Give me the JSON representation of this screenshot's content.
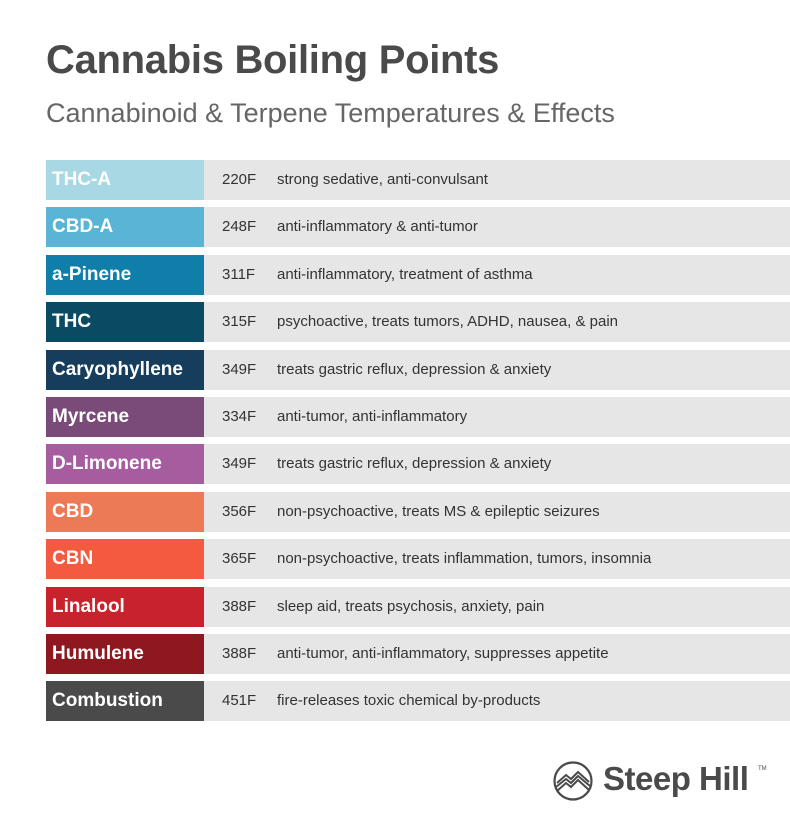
{
  "header": {
    "title": "Cannabis Boiling Points",
    "subtitle": "Cannabinoid & Terpene Temperatures & Effects"
  },
  "rows": [
    {
      "name": "THC-A",
      "temp": "220F",
      "effect": "strong sedative, anti-convulsant",
      "color": "#a8d8e4"
    },
    {
      "name": "CBD-A",
      "temp": "248F",
      "effect": "anti-inflammatory & anti-tumor",
      "color": "#5ab4d6"
    },
    {
      "name": "a-Pinene",
      "temp": "311F",
      "effect": "anti-inflammatory, treatment of asthma",
      "color": "#0f7ea8"
    },
    {
      "name": "THC",
      "temp": "315F",
      "effect": "psychoactive, treats tumors, ADHD, nausea, & pain",
      "color": "#0b4a63"
    },
    {
      "name": "Caryophyllene",
      "temp": "349F",
      "effect": "treats gastric reflux, depression & anxiety",
      "color": "#163d5c"
    },
    {
      "name": "Myrcene",
      "temp": "334F",
      "effect": "anti-tumor, anti-inflammatory",
      "color": "#7a4a78"
    },
    {
      "name": "D-Limonene",
      "temp": "349F",
      "effect": "treats gastric reflux, depression & anxiety",
      "color": "#a65da0"
    },
    {
      "name": "CBD",
      "temp": "356F",
      "effect": "non-psychoactive, treats MS & epileptic seizures",
      "color": "#ec7a57"
    },
    {
      "name": "CBN",
      "temp": "365F",
      "effect": "non-psychoactive, treats inflammation, tumors, insomnia",
      "color": "#f45a40"
    },
    {
      "name": "Linalool",
      "temp": "388F",
      "effect": "sleep aid, treats psychosis, anxiety, pain",
      "color": "#c8232c"
    },
    {
      "name": "Humulene",
      "temp": "388F",
      "effect": "anti-tumor, anti-inflammatory, suppresses appetite",
      "color": "#8e1820"
    },
    {
      "name": "Combustion",
      "temp": "451F",
      "effect": "fire-releases toxic chemical by-products",
      "color": "#4a4a4a"
    }
  ],
  "logo": {
    "text": "Steep Hill",
    "icon": "mountain-circle-icon",
    "trademark": "TM"
  }
}
